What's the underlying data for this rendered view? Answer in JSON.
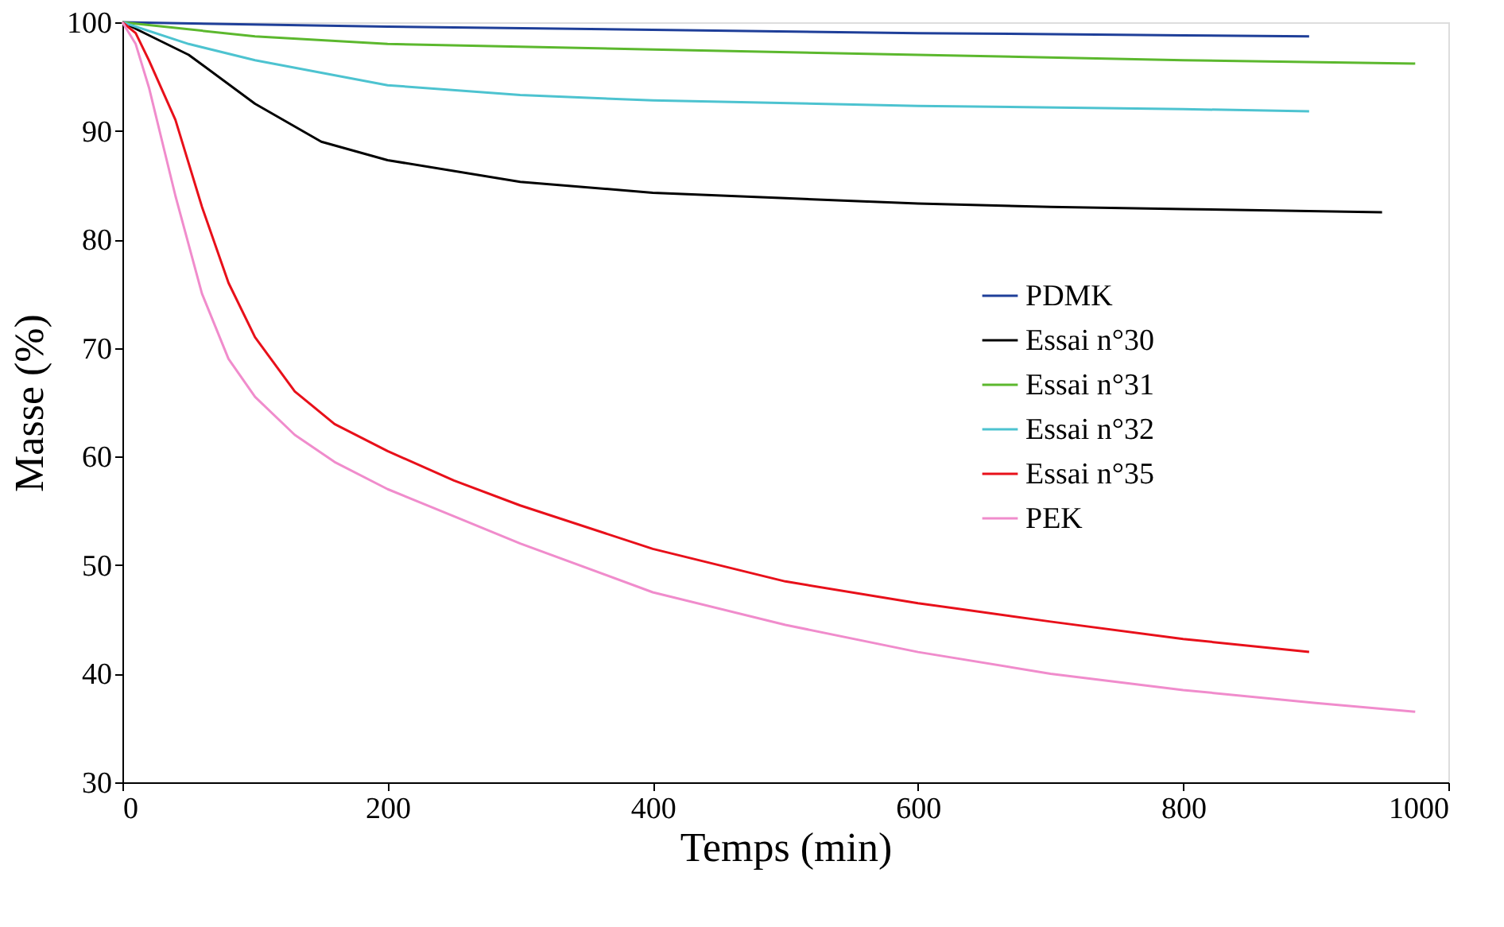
{
  "chart_data": {
    "type": "line",
    "xlabel": "Temps (min)",
    "ylabel": "Masse (%)",
    "xlim": [
      0,
      1000
    ],
    "xticks": [
      0,
      200,
      400,
      600,
      800,
      1000
    ],
    "ylim": [
      30,
      100
    ],
    "yticks": [
      30,
      40,
      50,
      60,
      70,
      80,
      90,
      100
    ],
    "grid": false,
    "legend": "right",
    "marker": "none",
    "line_style": "solid",
    "series": [
      {
        "name": "PDMK",
        "color": "#1f3f99",
        "x": [
          0,
          200,
          400,
          600,
          800,
          895
        ],
        "values": [
          100,
          99.6,
          99.3,
          99.0,
          98.8,
          98.7
        ]
      },
      {
        "name": "Essai n°30",
        "color": "#000000",
        "x": [
          0,
          50,
          100,
          150,
          200,
          300,
          400,
          500,
          600,
          700,
          800,
          950
        ],
        "values": [
          100,
          97,
          92.5,
          89,
          87.3,
          85.3,
          84.3,
          83.8,
          83.3,
          83,
          82.8,
          82.5
        ]
      },
      {
        "name": "Essai n°31",
        "color": "#5cb82e",
        "x": [
          0,
          100,
          200,
          400,
          600,
          800,
          975
        ],
        "values": [
          100,
          98.7,
          98,
          97.5,
          97,
          96.5,
          96.2
        ]
      },
      {
        "name": "Essai n°32",
        "color": "#4dc3d0",
        "x": [
          0,
          50,
          100,
          200,
          300,
          400,
          600,
          800,
          895
        ],
        "values": [
          100,
          98,
          96.5,
          94.2,
          93.3,
          92.8,
          92.3,
          92,
          91.8
        ]
      },
      {
        "name": "Essai n°35",
        "color": "#e8101a",
        "x": [
          0,
          10,
          20,
          40,
          60,
          80,
          100,
          130,
          160,
          200,
          250,
          300,
          400,
          500,
          600,
          700,
          800,
          895
        ],
        "values": [
          100,
          99,
          96.5,
          91,
          83,
          76,
          71,
          66,
          63,
          60.5,
          57.8,
          55.5,
          51.5,
          48.5,
          46.5,
          44.8,
          43.2,
          42
        ]
      },
      {
        "name": "PEK",
        "color": "#f08ccc",
        "x": [
          0,
          10,
          20,
          40,
          60,
          80,
          100,
          130,
          160,
          200,
          250,
          300,
          400,
          500,
          600,
          700,
          800,
          900,
          975
        ],
        "values": [
          100,
          98,
          94,
          84,
          75,
          69,
          65.5,
          62,
          59.5,
          57,
          54.5,
          52,
          47.5,
          44.5,
          42,
          40,
          38.5,
          37.3,
          36.5
        ]
      }
    ]
  }
}
